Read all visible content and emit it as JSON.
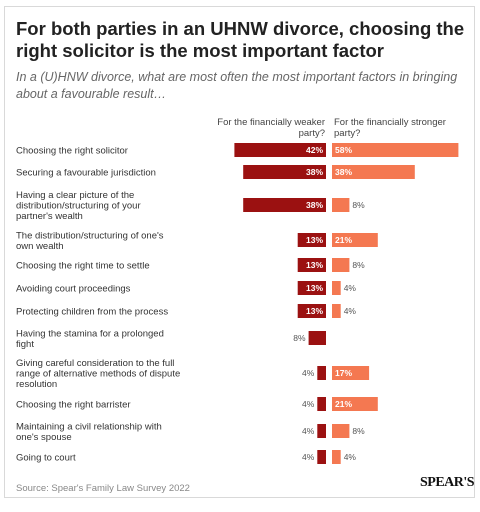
{
  "title": "For both parties in an UHNW divorce, choosing the right solicitor is the most important factor",
  "subtitle": "In a (U)HNW divorce, what are most often the most important factors in bringing about a favourable result…",
  "source": "Source: Spear's Family Law Survey 2022",
  "logo_text": "SPEAR'S",
  "colors": {
    "weaker": "#9b1111",
    "stronger": "#f47851"
  },
  "chart_data": {
    "type": "bar",
    "orientation": "horizontal-diverging",
    "categories": [
      "Choosing the right solicitor",
      "Securing a favourable jurisdiction",
      "Having a clear picture of the distribution/structuring of your partner's wealth",
      "The distribution/structuring of one's own wealth",
      "Choosing the right time to settle",
      "Avoiding court proceedings",
      "Protecting children from the process",
      "Having the stamina for a prolonged fight",
      "Giving careful consideration to the full range of alternative methods of dispute resolution",
      "Choosing the right barrister",
      "Maintaining a civil relationship with one's spouse",
      "Going to court"
    ],
    "category_lines": [
      [
        "Choosing the right solicitor"
      ],
      [
        "Securing a favourable jurisdiction"
      ],
      [
        "Having a clear picture of the",
        "distribution/structuring of your",
        "partner's wealth"
      ],
      [
        "The distribution/structuring of one's",
        "own wealth"
      ],
      [
        "Choosing the right time to settle"
      ],
      [
        "Avoiding court proceedings"
      ],
      [
        "Protecting children from the process"
      ],
      [
        "Having the stamina for a prolonged",
        "fight"
      ],
      [
        "Giving careful consideration to the full",
        "range of alternative methods of dispute",
        "resolution"
      ],
      [
        "Choosing the right barrister"
      ],
      [
        "Maintaining a civil relationship with",
        "one's spouse"
      ],
      [
        "Going to court"
      ]
    ],
    "series": [
      {
        "name": "For the financially weaker party?",
        "values": [
          42,
          38,
          38,
          13,
          13,
          13,
          13,
          8,
          4,
          4,
          4,
          4
        ]
      },
      {
        "name": "For the financially stronger party?",
        "values": [
          58,
          38,
          8,
          21,
          8,
          4,
          4,
          null,
          17,
          21,
          8,
          4
        ]
      }
    ],
    "value_suffix": "%",
    "xlim": [
      0,
      60
    ],
    "grid": false,
    "legend": "top"
  }
}
